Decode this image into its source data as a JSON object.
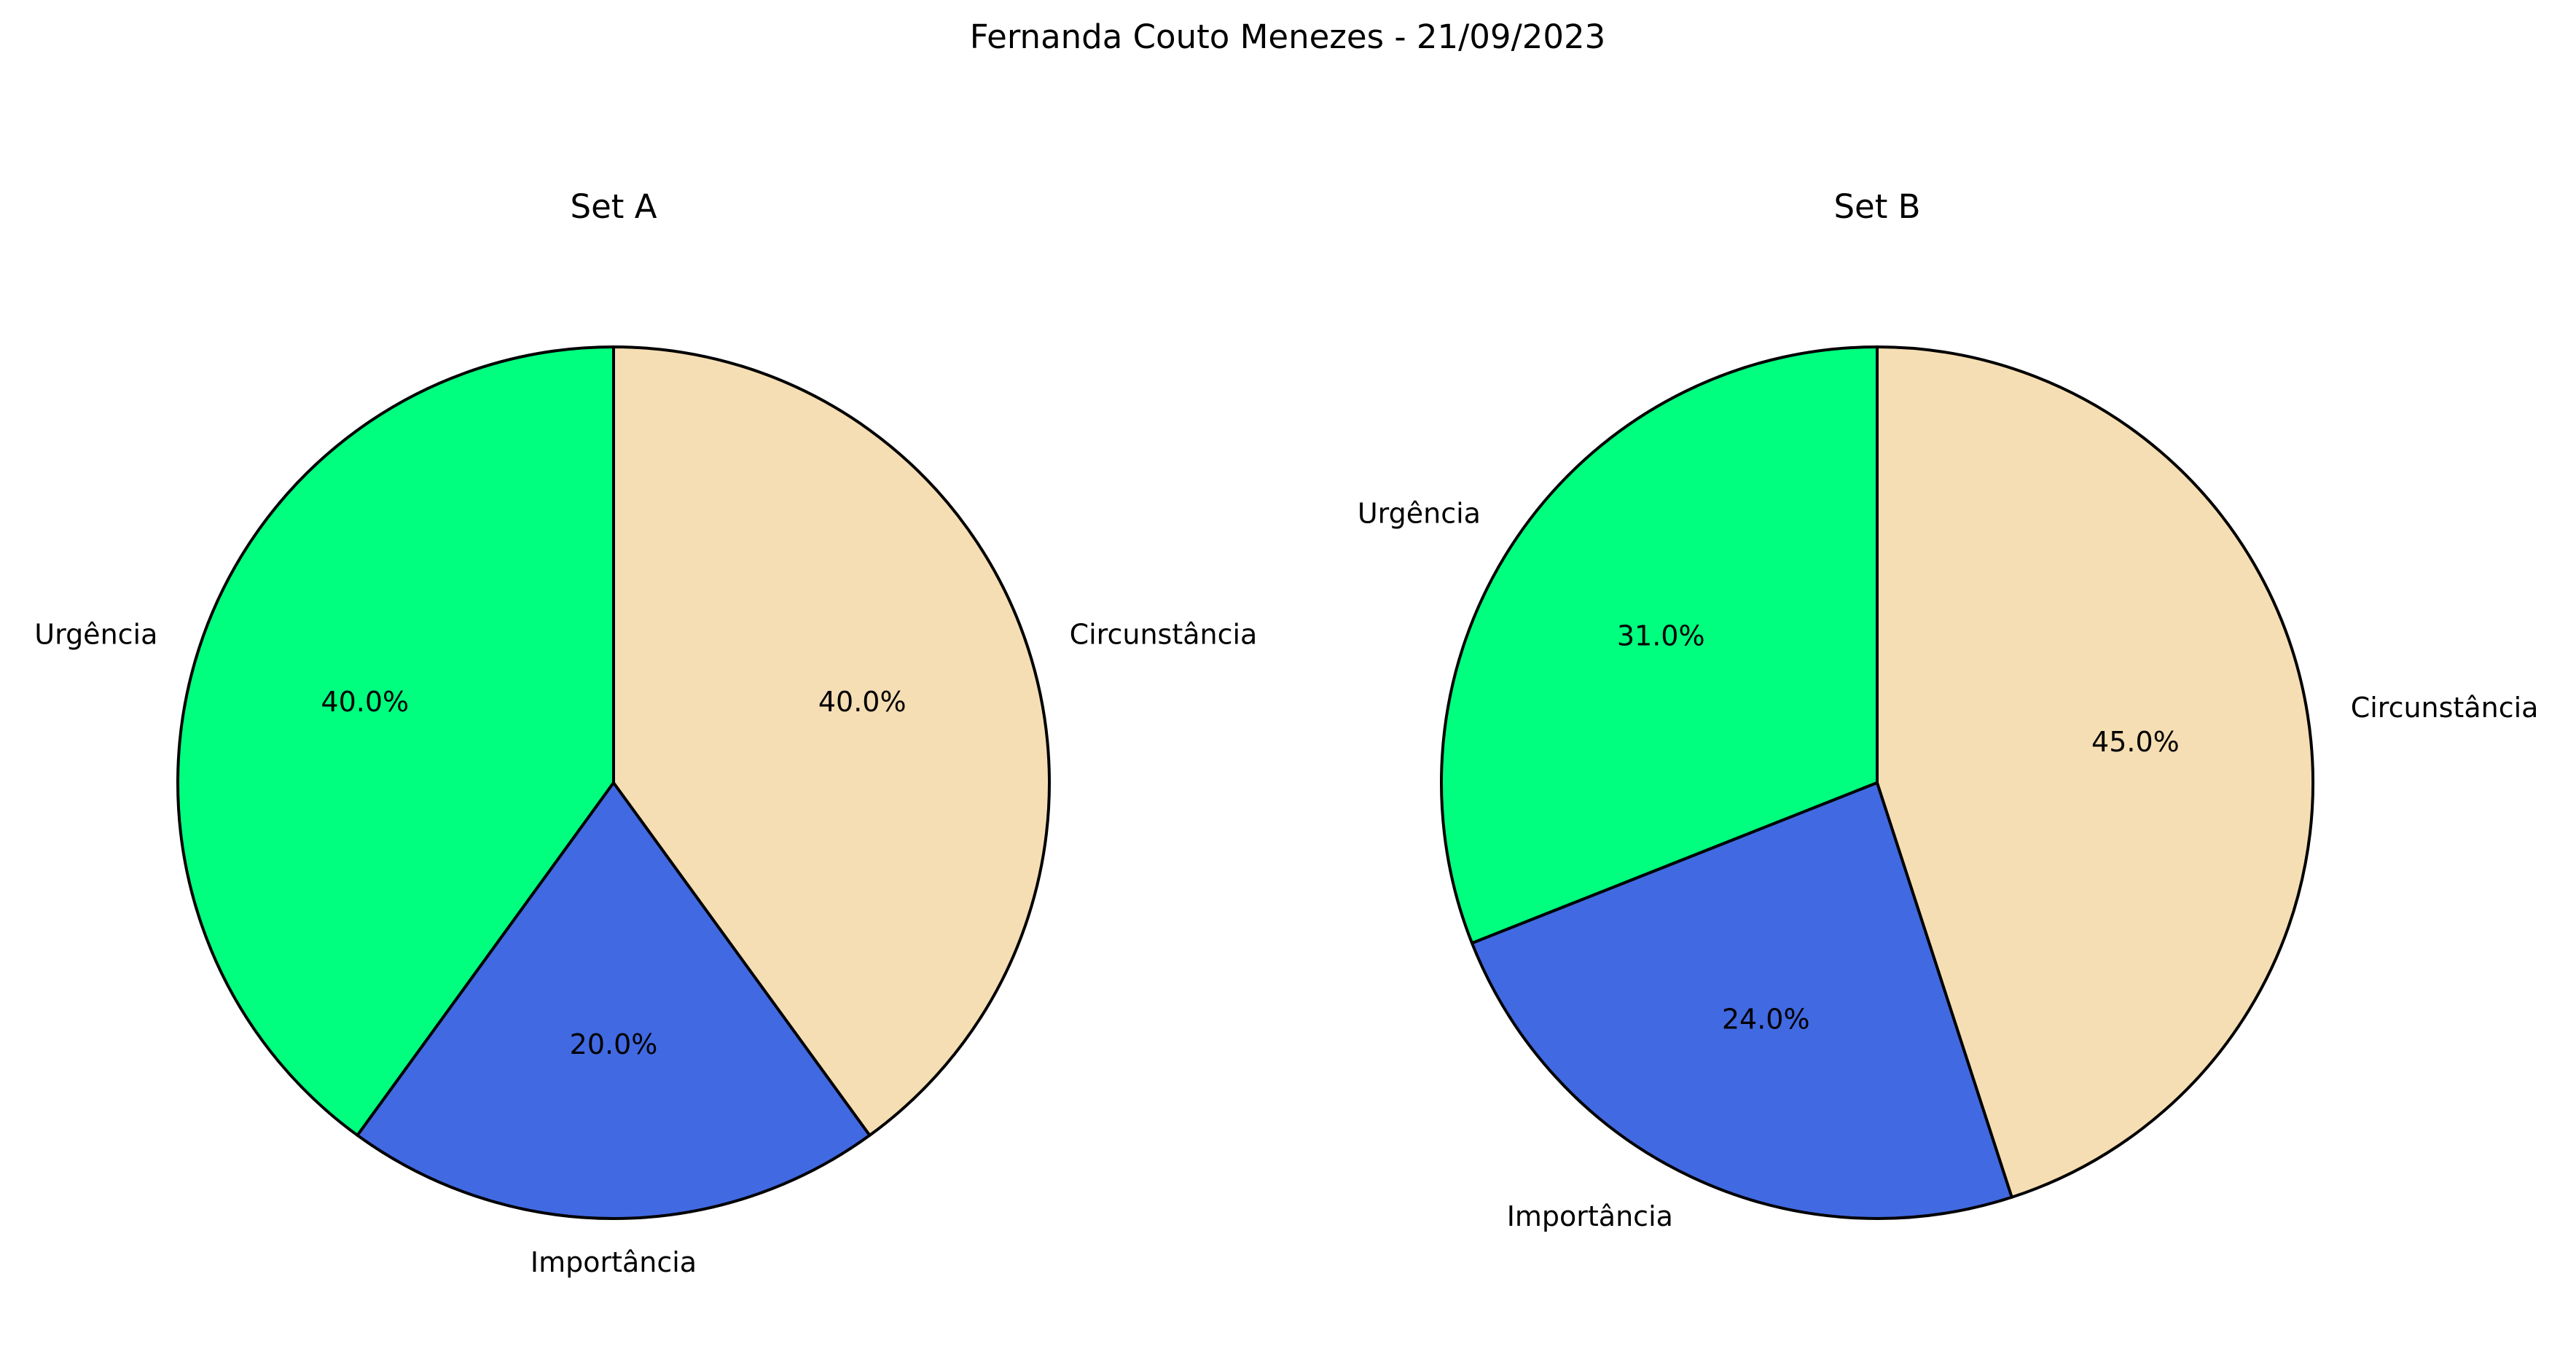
{
  "chart_data": {
    "title": "Fernanda Couto Menezes - 21/09/2023",
    "charts": [
      {
        "type": "pie",
        "title": "Set A",
        "start_angle_deg": 90,
        "direction": "counterclockwise",
        "slices": [
          {
            "label": "Urgência",
            "value": 40.0,
            "pct_label": "40.0%",
            "color": "#00ff7f"
          },
          {
            "label": "Importância",
            "value": 20.0,
            "pct_label": "20.0%",
            "color": "#4169e1"
          },
          {
            "label": "Circunstância",
            "value": 40.0,
            "pct_label": "40.0%",
            "color": "#f5deb3"
          }
        ]
      },
      {
        "type": "pie",
        "title": "Set B",
        "start_angle_deg": 90,
        "direction": "counterclockwise",
        "slices": [
          {
            "label": "Urgência",
            "value": 31.0,
            "pct_label": "31.0%",
            "color": "#00ff7f"
          },
          {
            "label": "Importância",
            "value": 24.0,
            "pct_label": "24.0%",
            "color": "#4169e1"
          },
          {
            "label": "Circunstância",
            "value": 45.0,
            "pct_label": "45.0%",
            "color": "#f5deb3"
          }
        ]
      }
    ]
  }
}
